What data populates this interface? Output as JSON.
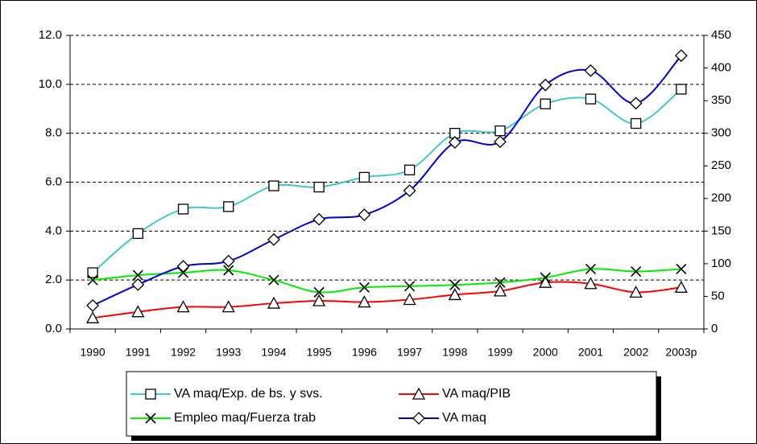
{
  "chart_data": {
    "type": "line",
    "categories": [
      "1990",
      "1991",
      "1992",
      "1993",
      "1994",
      "1995",
      "1996",
      "1997",
      "1998",
      "1999",
      "2000",
      "2001",
      "2002",
      "2003p"
    ],
    "ylim": [
      0,
      12
    ],
    "yticks": [
      {
        "value": 0,
        "label": "0.0"
      },
      {
        "value": 2,
        "label": "2.0"
      },
      {
        "value": 4,
        "label": "4.0"
      },
      {
        "value": 6,
        "label": "6.0"
      },
      {
        "value": 8,
        "label": "8.0"
      },
      {
        "value": 10,
        "label": "10.0"
      },
      {
        "value": 12,
        "label": "12.0"
      }
    ],
    "y2lim": [
      0,
      450
    ],
    "y2ticks": [
      0,
      50,
      100,
      150,
      200,
      250,
      300,
      350,
      400,
      450
    ],
    "grid": true,
    "legend": "bottom",
    "series": [
      {
        "name": "VA maq/Exp. de bs. y svs.",
        "color": "#40c8c8",
        "marker": "square",
        "values": [
          2.3,
          3.9,
          4.9,
          5.0,
          5.85,
          5.8,
          6.2,
          6.5,
          8.0,
          8.1,
          9.2,
          9.4,
          8.4,
          9.8
        ]
      },
      {
        "name": "VA maq/PIB",
        "color": "#ff0000",
        "marker": "triangle",
        "values": [
          0.45,
          0.7,
          0.9,
          0.9,
          1.05,
          1.15,
          1.1,
          1.2,
          1.4,
          1.55,
          1.9,
          1.85,
          1.5,
          1.7
        ]
      },
      {
        "name": "Empleo maq/Fuerza trab",
        "color": "#00ee00",
        "marker": "x",
        "values": [
          2.0,
          2.2,
          2.3,
          2.4,
          2.0,
          1.5,
          1.7,
          1.75,
          1.8,
          1.9,
          2.1,
          2.45,
          2.35,
          2.45
        ]
      },
      {
        "name": "VA maq",
        "color": "#0000cc",
        "marker": "diamond",
        "axis": "y2",
        "values": [
          36,
          68,
          96,
          104,
          137,
          168,
          175,
          212,
          286,
          287,
          374,
          396,
          346,
          419
        ]
      }
    ]
  }
}
